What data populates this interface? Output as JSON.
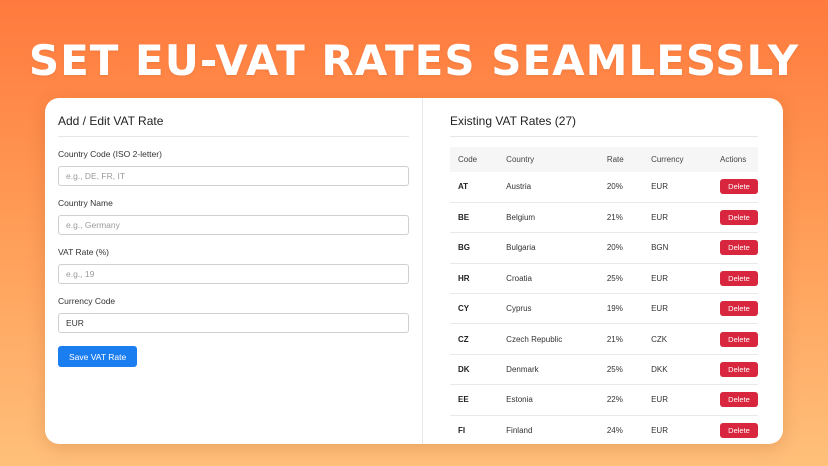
{
  "headline": "SET EU-VAT RATES SEAMLESSLY",
  "form": {
    "title": "Add / Edit VAT Rate",
    "fields": [
      {
        "label": "Country Code (ISO 2-letter)",
        "placeholder": "e.g., DE, FR, IT",
        "value": ""
      },
      {
        "label": "Country Name",
        "placeholder": "e.g., Germany",
        "value": ""
      },
      {
        "label": "VAT Rate (%)",
        "placeholder": "e.g., 19",
        "value": ""
      },
      {
        "label": "Currency Code",
        "placeholder": "",
        "value": "EUR"
      }
    ],
    "save_label": "Save VAT Rate"
  },
  "table": {
    "title": "Existing VAT Rates (27)",
    "headers": {
      "code": "Code",
      "country": "Country",
      "rate": "Rate",
      "currency": "Currency",
      "actions": "Actions"
    },
    "delete_label": "Delete",
    "rows": [
      {
        "code": "AT",
        "country": "Austria",
        "rate": "20%",
        "currency": "EUR"
      },
      {
        "code": "BE",
        "country": "Belgium",
        "rate": "21%",
        "currency": "EUR"
      },
      {
        "code": "BG",
        "country": "Bulgaria",
        "rate": "20%",
        "currency": "BGN"
      },
      {
        "code": "HR",
        "country": "Croatia",
        "rate": "25%",
        "currency": "EUR"
      },
      {
        "code": "CY",
        "country": "Cyprus",
        "rate": "19%",
        "currency": "EUR"
      },
      {
        "code": "CZ",
        "country": "Czech Republic",
        "rate": "21%",
        "currency": "CZK"
      },
      {
        "code": "DK",
        "country": "Denmark",
        "rate": "25%",
        "currency": "DKK"
      },
      {
        "code": "EE",
        "country": "Estonia",
        "rate": "22%",
        "currency": "EUR"
      },
      {
        "code": "FI",
        "country": "Finland",
        "rate": "24%",
        "currency": "EUR"
      }
    ]
  },
  "colors": {
    "primary_button": "#1b7ef0",
    "delete_button": "#d7263d",
    "background_top": "#ff7a3d",
    "background_bottom": "#ffc07a"
  }
}
